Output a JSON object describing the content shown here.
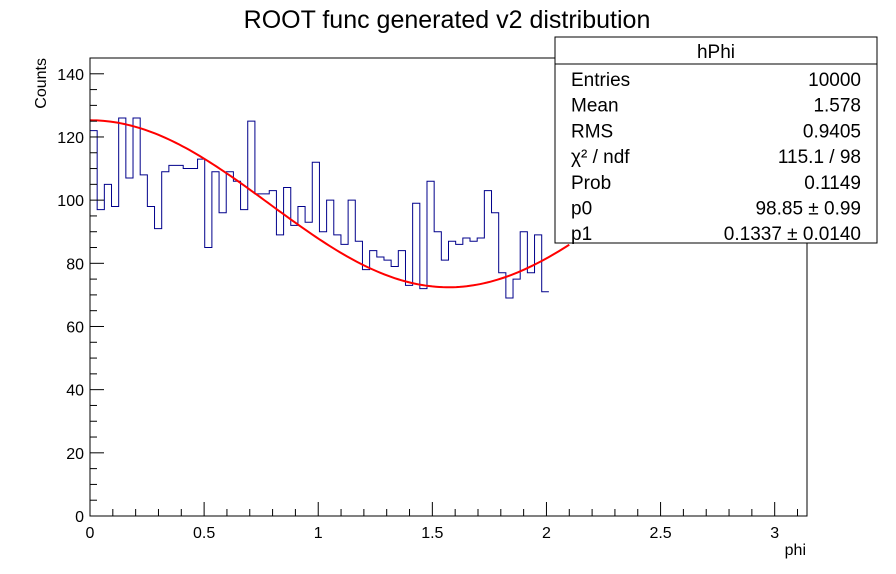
{
  "chart_data": {
    "type": "histogram",
    "title": "ROOT func generated v2 distribution",
    "xlabel": "phi",
    "ylabel": "Counts",
    "xlim": [
      0,
      3.14159
    ],
    "ylim": [
      0,
      145
    ],
    "x_ticks": [
      "0",
      "0.5",
      "1",
      "1.5",
      "2",
      "2.5",
      "3"
    ],
    "y_ticks": [
      "0",
      "20",
      "40",
      "60",
      "80",
      "100",
      "120",
      "140"
    ],
    "grid": false,
    "series": [
      {
        "kind": "histogram",
        "color": "#00008b",
        "bin_width": 0.0314159,
        "values": [
          122,
          97,
          105,
          98,
          126,
          107,
          126,
          108,
          98,
          91,
          109,
          111,
          111,
          110,
          110,
          113,
          85,
          109,
          96,
          109,
          106,
          97,
          125,
          102,
          102,
          103,
          89,
          104,
          92,
          98,
          93,
          112,
          90,
          100,
          89,
          86,
          100,
          87,
          78,
          84,
          82,
          81,
          79,
          84,
          73,
          99,
          72,
          106,
          90,
          81,
          87,
          86,
          88,
          87,
          88,
          103,
          96,
          77,
          69,
          75,
          90,
          77,
          89,
          71
        ],
        "hidden_bins_note": ""
      },
      {
        "kind": "fit",
        "color": "#ff0000",
        "formula": "p0*(1+2*p1*cos(2*x))",
        "x_range": [
          0,
          2.1
        ]
      }
    ],
    "stats_box": {
      "title": "hPhi",
      "rows": [
        {
          "label": "Entries",
          "value": "10000"
        },
        {
          "label": "Mean",
          "value": "1.578"
        },
        {
          "label": "RMS",
          "value": "0.9405"
        },
        {
          "label": "χ² / ndf",
          "value": "115.1 / 98"
        },
        {
          "label": "Prob",
          "value": "0.1149"
        },
        {
          "label": "p0",
          "value": "98.85 ± 0.99"
        },
        {
          "label": "p1",
          "value": "0.1337 ± 0.0140"
        }
      ]
    },
    "fit_params": {
      "p0": 98.85,
      "p1": 0.1337
    }
  }
}
